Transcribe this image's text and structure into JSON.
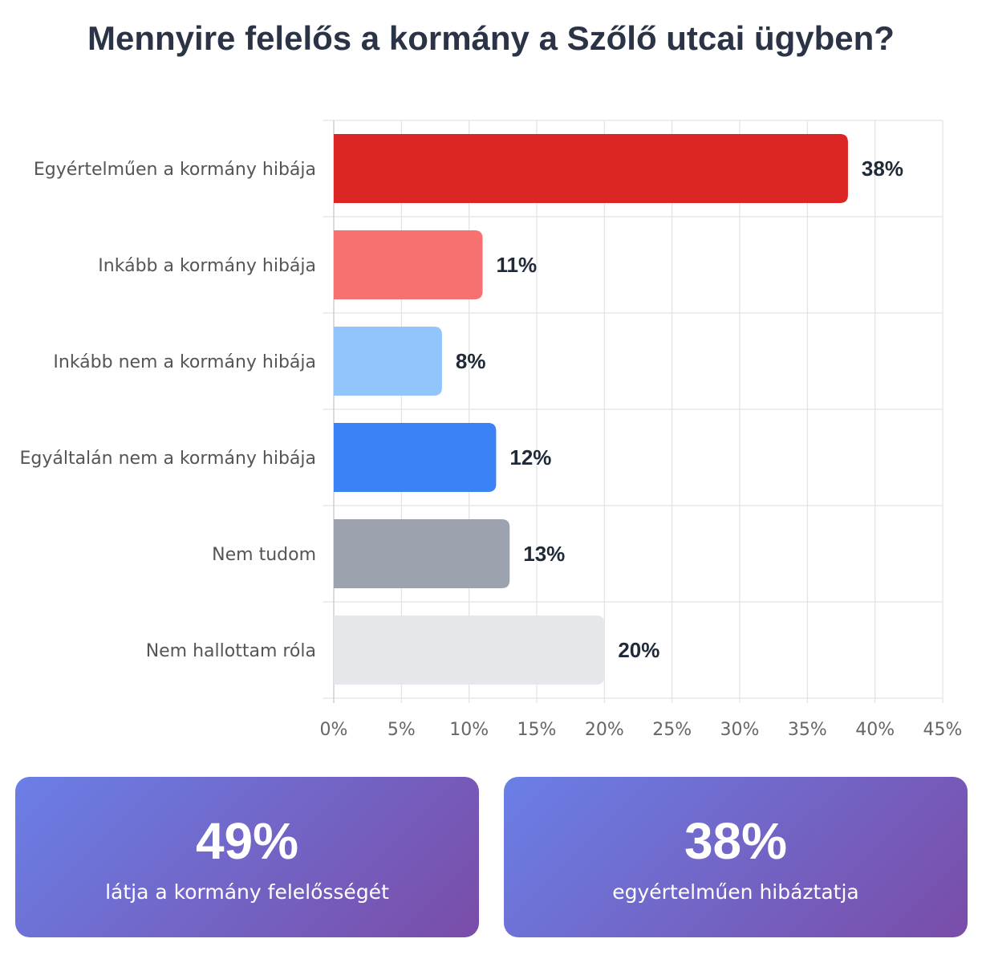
{
  "title": "Mennyire felelős a kormány a Szőlő utcai ügyben?",
  "chart_data": {
    "type": "bar",
    "orientation": "horizontal",
    "categories": [
      "Egyértelműen a kormány hibája",
      "Inkább a kormány hibája",
      "Inkább nem a kormány hibája",
      "Egyáltalán nem a kormány hibája",
      "Nem tudom",
      "Nem hallottam róla"
    ],
    "values": [
      38,
      11,
      8,
      12,
      13,
      20
    ],
    "value_labels": [
      "38%",
      "11%",
      "8%",
      "12%",
      "13%",
      "20%"
    ],
    "colors": [
      "#dc2626",
      "#f87171",
      "#93c5fd",
      "#3b82f6",
      "#9ca3af",
      "#e5e7eb"
    ],
    "xlim": [
      0,
      45
    ],
    "xticks": [
      0,
      5,
      10,
      15,
      20,
      25,
      30,
      35,
      40,
      45
    ],
    "xtick_labels": [
      "0%",
      "5%",
      "10%",
      "15%",
      "20%",
      "25%",
      "30%",
      "35%",
      "40%",
      "45%"
    ],
    "xlabel": "",
    "ylabel": "",
    "grid": true,
    "legend": "none"
  },
  "stats": [
    {
      "value": "49%",
      "label": "látja a kormány felelősségét"
    },
    {
      "value": "38%",
      "label": "egyértelműen hibáztatja"
    }
  ]
}
